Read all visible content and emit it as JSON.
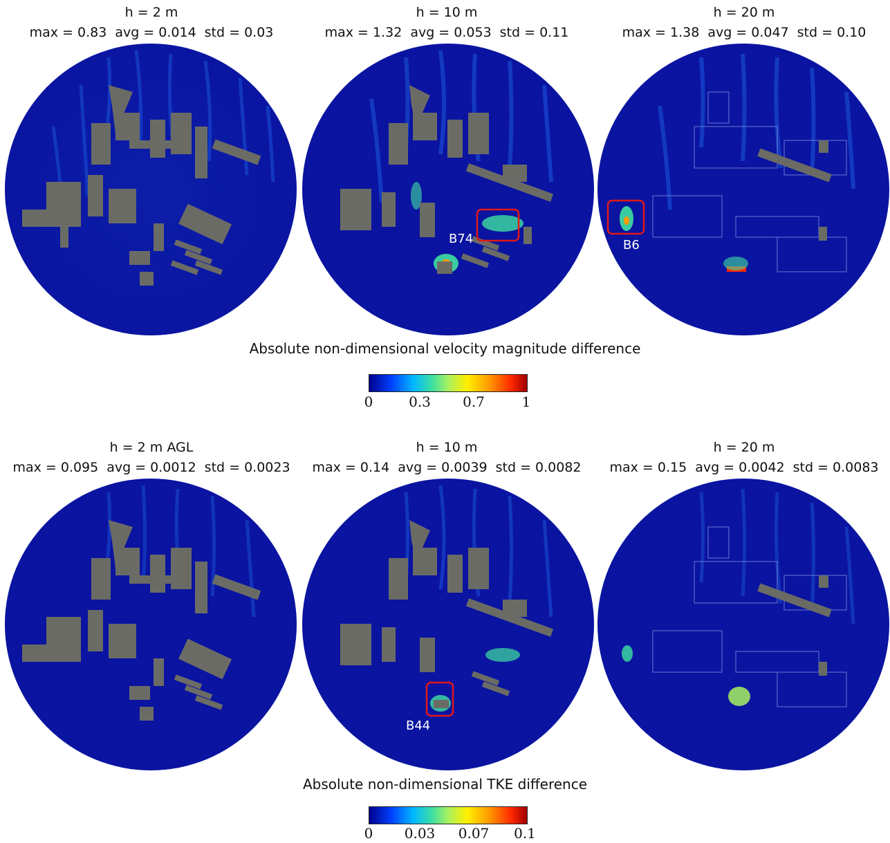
{
  "velocity_section": {
    "title": "Absolute non-dimensional velocity magnitude difference",
    "colorbar_ticks": [
      "0",
      "0.3",
      "0.7",
      "1"
    ],
    "panels": [
      {
        "height": "h = 2 m",
        "max": "max = 0.83",
        "avg": "avg = 0.014",
        "std": "std = 0.03",
        "highlight": ""
      },
      {
        "height": "h = 10 m",
        "max": "max = 1.32",
        "avg": "avg = 0.053",
        "std": "std = 0.11",
        "highlight": "B74"
      },
      {
        "height": "h = 20 m",
        "max": "max = 1.38",
        "avg": "avg = 0.047",
        "std": "std = 0.10",
        "highlight": "B6"
      }
    ]
  },
  "tke_section": {
    "title": "Absolute non-dimensional TKE difference",
    "colorbar_ticks": [
      "0",
      "0.03",
      "0.07",
      "0.1"
    ],
    "panels": [
      {
        "height": "h = 2 m AGL",
        "max": "max = 0.095",
        "avg": "avg = 0.0012",
        "std": "std = 0.0023",
        "highlight": ""
      },
      {
        "height": "h = 10 m",
        "max": "max = 0.14",
        "avg": "avg = 0.0039",
        "std": "std = 0.0082",
        "highlight": "B44"
      },
      {
        "height": "h = 20 m",
        "max": "max = 0.15",
        "avg": "avg = 0.0042",
        "std": "std = 0.0083",
        "highlight": ""
      }
    ]
  },
  "colors": {
    "field_background": "#0a14a0",
    "building": "#6b6b66",
    "highlight_box": "#e01818",
    "colormap": [
      "#00008f",
      "#0040ff",
      "#00b8ff",
      "#3fe0a0",
      "#a8f060",
      "#fff000",
      "#ff9a00",
      "#ff2800",
      "#a00000"
    ]
  }
}
